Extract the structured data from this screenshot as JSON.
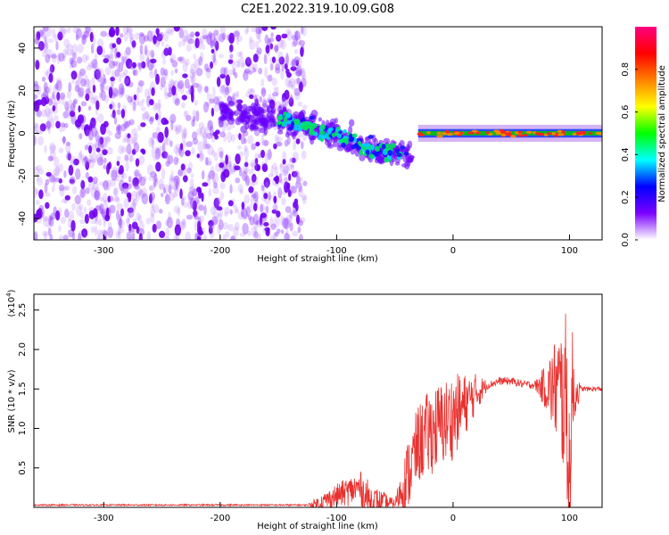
{
  "figure_title": "C2E1.2022.319.10.09.G08",
  "chart_data": [
    {
      "type": "heatmap",
      "id": "spectrogram",
      "xlabel": "Height of straight line (km)",
      "ylabel": "Frequency (Hz)",
      "xlim": [
        -360,
        128
      ],
      "ylim": [
        -50,
        50
      ],
      "xticks": [
        -300,
        -200,
        -100,
        0,
        100
      ],
      "yticks": [
        -40,
        -20,
        0,
        20,
        40
      ],
      "colorbar": {
        "label": "Normalized spectral amplitude",
        "range": [
          0.0,
          1.0
        ],
        "ticks": [
          "0.0",
          "0.2",
          "0.4",
          "0.6",
          "0.8"
        ],
        "colors": [
          "#ffffff",
          "#7b00ff",
          "#0000ff",
          "#00ffff",
          "#00ff00",
          "#ffff00",
          "#ff8000",
          "#ff0000",
          "#ff0080"
        ]
      },
      "regions": [
        {
          "x_range": [
            -360,
            -127
          ],
          "freq_range": [
            -50,
            50
          ],
          "amplitude": "low",
          "color": "#8a2be2"
        },
        {
          "x_range": [
            -200,
            -35
          ],
          "track_freq": [
            [
              -200,
              10
            ],
            [
              -150,
              6
            ],
            [
              -100,
              0
            ],
            [
              -75,
              -7
            ],
            [
              -40,
              -10
            ]
          ],
          "amplitude": "medium"
        },
        {
          "x_range": [
            -30,
            128
          ],
          "track_freq": [
            [
              -30,
              -1
            ],
            [
              0,
              0
            ],
            [
              128,
              0
            ]
          ],
          "amplitude": "high"
        }
      ]
    },
    {
      "type": "line",
      "id": "snr",
      "xlabel": "Height of straight line (km)",
      "ylabel": "SNR (10 * v/v)",
      "multiplier": "(x10^4)",
      "xlim": [
        -360,
        128
      ],
      "ylim": [
        0,
        2.7
      ],
      "xticks": [
        -300,
        -200,
        -100,
        0,
        100
      ],
      "yticks": [
        0.5,
        1.0,
        1.5,
        2.0,
        2.5
      ],
      "color": "#e8312e",
      "series": [
        {
          "name": "",
          "baseline": [
            [
              -360,
              0.03
            ],
            [
              -125,
              0.03
            ],
            [
              -115,
              0.05
            ],
            [
              -100,
              0.15
            ],
            [
              -80,
              0.25
            ],
            [
              -70,
              0.05
            ],
            [
              -50,
              0.05
            ],
            [
              -40,
              0.35
            ],
            [
              -30,
              0.8
            ],
            [
              -20,
              0.95
            ],
            [
              -10,
              1.05
            ],
            [
              0,
              1.15
            ],
            [
              10,
              1.3
            ],
            [
              20,
              1.45
            ],
            [
              30,
              1.55
            ],
            [
              40,
              1.6
            ],
            [
              50,
              1.6
            ],
            [
              60,
              1.56
            ],
            [
              70,
              1.55
            ],
            [
              80,
              1.52
            ],
            [
              90,
              1.5
            ],
            [
              98,
              1.3
            ],
            [
              100,
              0.05
            ],
            [
              102,
              1.4
            ],
            [
              110,
              1.5
            ],
            [
              128,
              1.5
            ]
          ],
          "noise": [
            [
              -360,
              0.01
            ],
            [
              -125,
              0.01
            ],
            [
              -115,
              0.1
            ],
            [
              -70,
              0.25
            ],
            [
              -50,
              0.05
            ],
            [
              -40,
              0.45
            ],
            [
              -20,
              0.55
            ],
            [
              0,
              0.55
            ],
            [
              20,
              0.25
            ],
            [
              30,
              0.05
            ],
            [
              70,
              0.05
            ],
            [
              80,
              0.3
            ],
            [
              95,
              1.0
            ],
            [
              100,
              1.4
            ],
            [
              105,
              0.3
            ],
            [
              110,
              0.03
            ],
            [
              128,
              0.03
            ]
          ]
        }
      ]
    }
  ]
}
